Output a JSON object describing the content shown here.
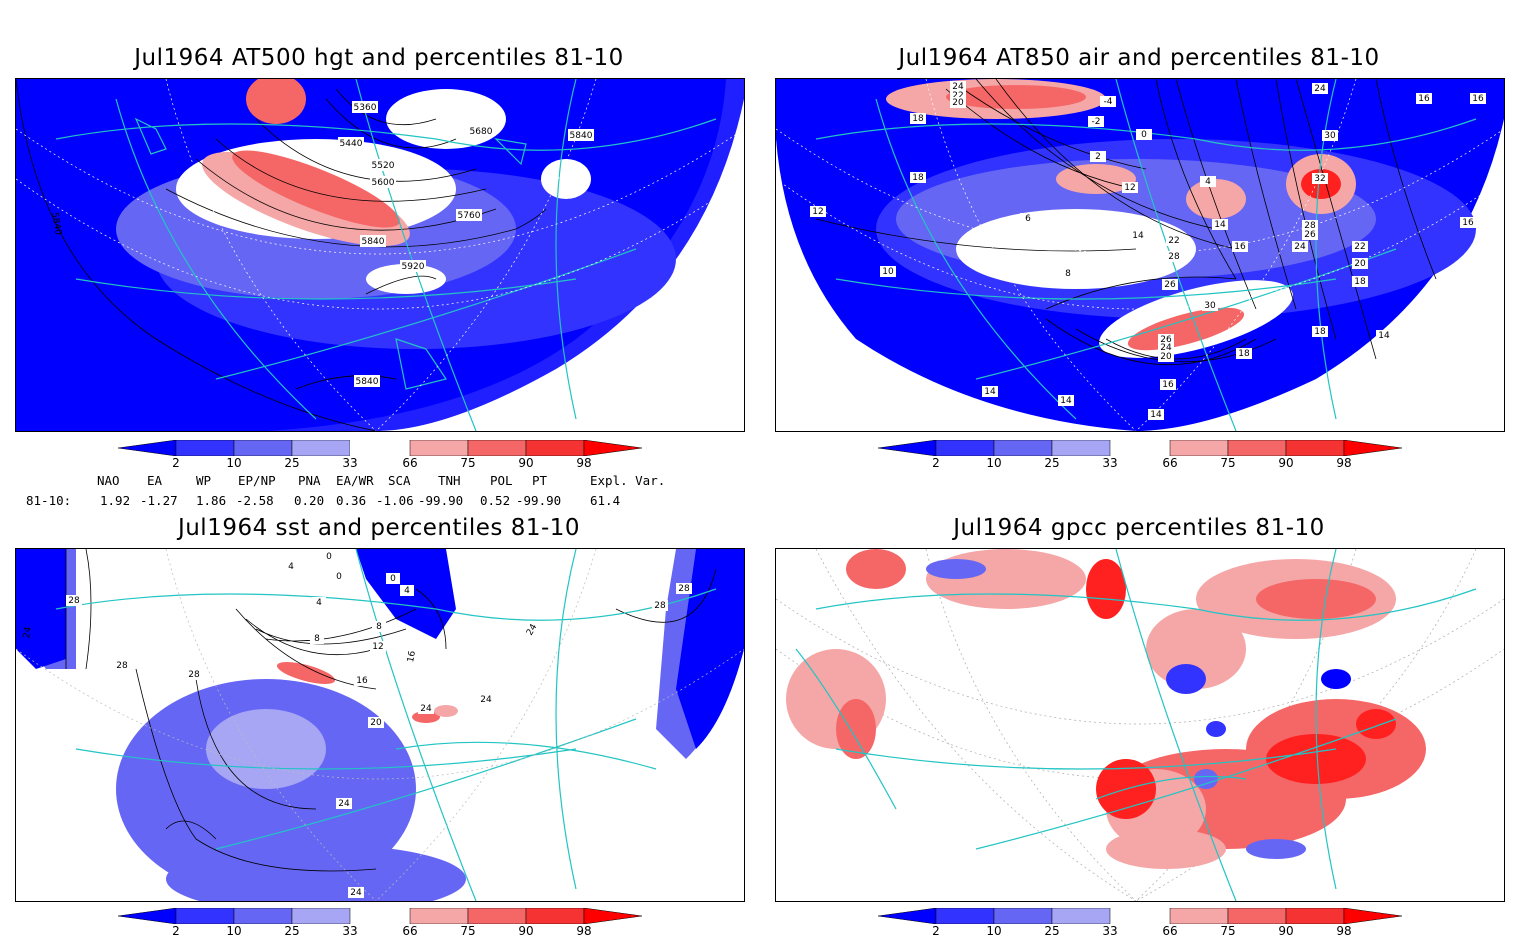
{
  "panels": [
    {
      "title": "Jul1964 AT500 hgt and percentiles 81-10",
      "contour_labels": [
        "5360",
        "5440",
        "5520",
        "5600",
        "5680",
        "5760",
        "5840",
        "5920",
        "5840",
        "5840",
        "5840"
      ]
    },
    {
      "title": "Jul1964 AT850 air and percentiles 81-10",
      "contour_labels": [
        "24",
        "22",
        "20",
        "18",
        "-4",
        "-2",
        "2",
        "0",
        "16",
        "24",
        "30",
        "32",
        "28",
        "26",
        "16",
        "18",
        "14",
        "12",
        "10",
        "8",
        "6",
        "4",
        "22",
        "20",
        "18",
        "16",
        "14",
        "12",
        "24",
        "26",
        "30",
        "28",
        "26",
        "24",
        "22",
        "20",
        "18",
        "16",
        "14",
        "14",
        "14",
        "18",
        "14",
        "16"
      ]
    },
    {
      "title": "Jul1964 sst and percentiles 81-10",
      "contour_labels": [
        "0",
        "0",
        "0",
        "4",
        "4",
        "8",
        "8",
        "12",
        "16",
        "20",
        "24",
        "24",
        "24",
        "24",
        "24",
        "28",
        "28",
        "28",
        "28",
        "28",
        "24",
        "16",
        "4"
      ]
    },
    {
      "title": "Jul1964 gpcc percentiles 81-10",
      "contour_labels": []
    }
  ],
  "colorbar": {
    "ticks": [
      "2",
      "10",
      "25",
      "33",
      "66",
      "75",
      "90",
      "98"
    ],
    "colors": [
      "#0000ff",
      "#3333ff",
      "#6666f5",
      "#a6a6f5",
      "#ffffff",
      "#f5a6a6",
      "#f56666",
      "#f53333",
      "#ff0000"
    ]
  },
  "indices": {
    "headers": [
      "NAO",
      "EA",
      "WP",
      "EP/NP",
      "PNA",
      "EA/WR",
      "SCA",
      "TNH",
      "POL",
      "PT",
      "Expl. Var."
    ],
    "row_label": "81-10:",
    "values": [
      "1.92",
      "-1.27",
      "1.86",
      "-2.58",
      "0.20",
      "0.36",
      "-1.06",
      "-99.90",
      "0.52",
      "-99.90",
      "61.4"
    ]
  },
  "map_colors": {
    "land_outline": "#22c4c4",
    "strong_below": "#0000ff",
    "below": "#6666f5",
    "weak_below": "#a6a6f5",
    "weak_above": "#f5a6a6",
    "above": "#f56666",
    "strong_above": "#ff2020"
  }
}
